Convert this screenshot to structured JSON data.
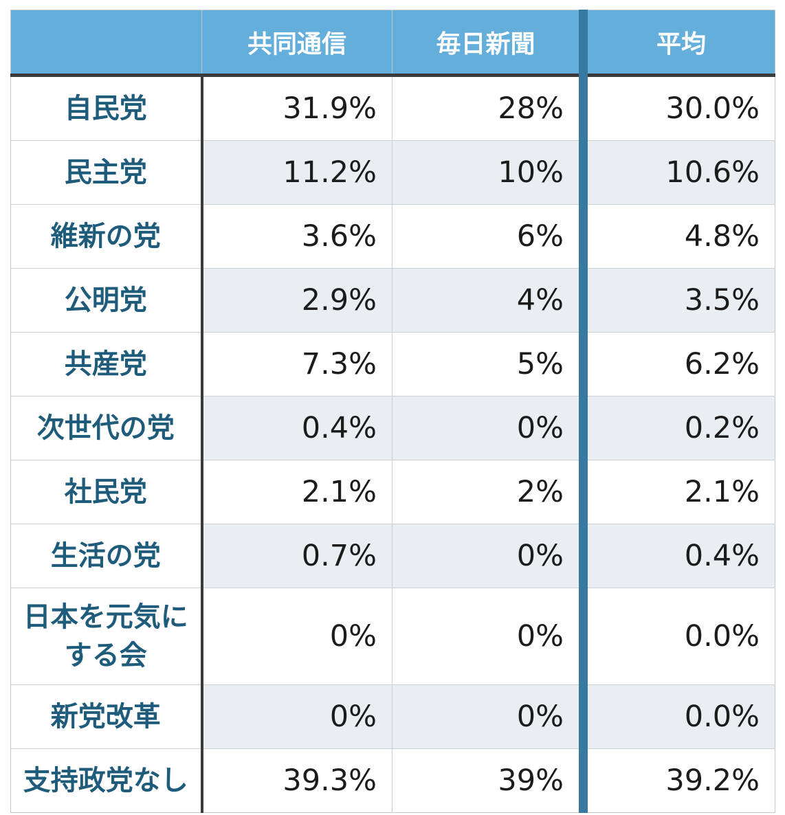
{
  "table": {
    "corner_label": "",
    "columns": [
      "共同通信",
      "毎日新聞",
      "平均"
    ],
    "rows": [
      {
        "party": "自民党",
        "values": [
          "31.9%",
          "28%",
          "30.0%"
        ]
      },
      {
        "party": "民主党",
        "values": [
          "11.2%",
          "10%",
          "10.6%"
        ]
      },
      {
        "party": "維新の党",
        "values": [
          "3.6%",
          "6%",
          "4.8%"
        ]
      },
      {
        "party": "公明党",
        "values": [
          "2.9%",
          "4%",
          "3.5%"
        ]
      },
      {
        "party": "共産党",
        "values": [
          "7.3%",
          "5%",
          "6.2%"
        ]
      },
      {
        "party": "次世代の党",
        "values": [
          "0.4%",
          "0%",
          "0.2%"
        ]
      },
      {
        "party": "社民党",
        "values": [
          "2.1%",
          "2%",
          "2.1%"
        ]
      },
      {
        "party": "生活の党",
        "values": [
          "0.7%",
          "0%",
          "0.4%"
        ]
      },
      {
        "party": "日本を元気にする会",
        "values": [
          "0%",
          "0%",
          "0.0%"
        ]
      },
      {
        "party": "新党改革",
        "values": [
          "0%",
          "0%",
          "0.0%"
        ]
      },
      {
        "party": "支持政党なし",
        "values": [
          "39.3%",
          "39%",
          "39.2%"
        ]
      }
    ]
  },
  "colors": {
    "header_background": "#64aedb",
    "header_text": "#ffffff",
    "party_text": "#1f5c7b",
    "value_text": "#1c1c1c",
    "dark_divider": "#3b3b3b",
    "teal_divider": "#38799f",
    "stripe_row_background": "#e9eef2",
    "gridline": "#c9ced3"
  },
  "chart_data": {
    "type": "table",
    "row_labels": [
      "自民党",
      "民主党",
      "維新の党",
      "公明党",
      "共産党",
      "次世代の党",
      "社民党",
      "生活の党",
      "日本を元気にする会",
      "新党改革",
      "支持政党なし"
    ],
    "series": [
      {
        "name": "共同通信",
        "values": [
          31.9,
          11.2,
          3.6,
          2.9,
          7.3,
          0.4,
          2.1,
          0.7,
          0,
          0,
          39.3
        ]
      },
      {
        "name": "毎日新聞",
        "values": [
          28,
          10,
          6,
          4,
          5,
          0,
          2,
          0,
          0,
          0,
          39
        ]
      },
      {
        "name": "平均",
        "values": [
          30.0,
          10.6,
          4.8,
          3.5,
          6.2,
          0.2,
          2.1,
          0.4,
          0.0,
          0.0,
          39.2
        ]
      }
    ],
    "unit": "%"
  }
}
